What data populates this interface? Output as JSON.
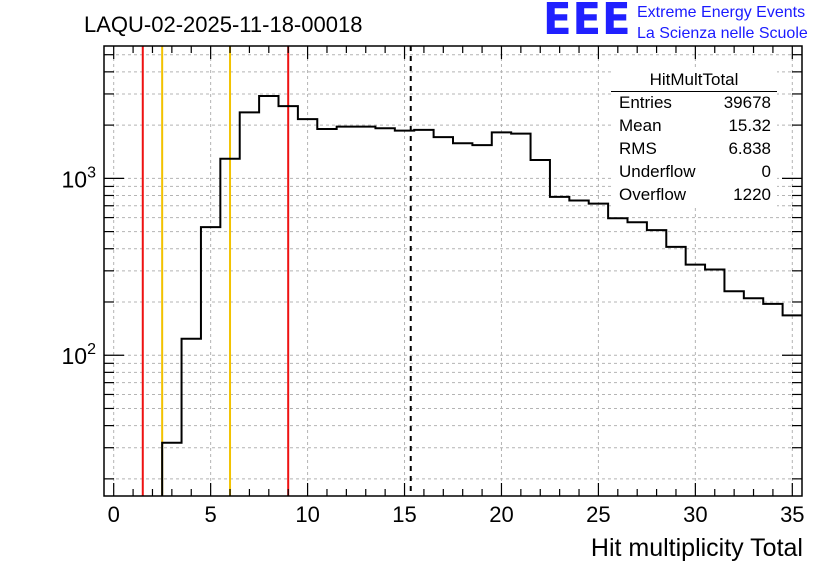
{
  "run_title": "LAQU-02-2025-11-18-00018",
  "logo": {
    "mark": "EEE",
    "line1": "Extreme Energy Events",
    "line2": "La Scienza nelle Scuole"
  },
  "stats_box": {
    "title": "HitMultTotal",
    "rows": [
      {
        "label": "Entries",
        "value": "39678"
      },
      {
        "label": "Mean",
        "value": "15.32"
      },
      {
        "label": "RMS",
        "value": "6.838"
      },
      {
        "label": "Underflow",
        "value": "0"
      },
      {
        "label": "Overflow",
        "value": "1220"
      }
    ]
  },
  "chart_data": {
    "type": "histogram",
    "title": "LAQU-02-2025-11-18-00018",
    "xlabel": "Hit multiplicity Total",
    "ylabel": "",
    "yscale": "log",
    "xlim": [
      -0.5,
      35.5
    ],
    "ylim": [
      16,
      5600
    ],
    "bin_width": 1,
    "bin_lows": [
      2.5,
      3.5,
      4.5,
      5.5,
      6.5,
      7.5,
      8.5,
      9.5,
      10.5,
      11.5,
      12.5,
      13.5,
      14.5,
      15.5,
      16.5,
      17.5,
      18.5,
      19.5,
      20.5,
      21.5,
      22.5,
      23.5,
      24.5,
      25.5,
      26.5,
      27.5,
      28.5,
      29.5,
      30.5,
      31.5,
      32.5,
      33.5,
      34.5
    ],
    "counts": [
      32,
      124,
      530,
      1290,
      2360,
      2920,
      2560,
      2160,
      1900,
      1960,
      1960,
      1920,
      1860,
      1880,
      1710,
      1580,
      1540,
      1820,
      1790,
      1270,
      785,
      750,
      720,
      595,
      565,
      510,
      410,
      325,
      305,
      230,
      210,
      195,
      168
    ],
    "x_ticks": [
      0,
      5,
      10,
      15,
      20,
      25,
      30,
      35
    ],
    "y_ticks": [
      {
        "value": 100,
        "base": "10",
        "exp": "2"
      },
      {
        "value": 1000,
        "base": "10",
        "exp": "3"
      }
    ],
    "vertical_lines": [
      {
        "x": 1.5,
        "color": "#ee1111",
        "style": "solid"
      },
      {
        "x": 2.5,
        "color": "#f2c200",
        "style": "solid"
      },
      {
        "x": 6.0,
        "color": "#f2c200",
        "style": "solid"
      },
      {
        "x": 9.0,
        "color": "#ee1111",
        "style": "solid"
      },
      {
        "x": 15.32,
        "color": "#000000",
        "style": "dashed"
      }
    ],
    "grid": true,
    "colors": {
      "line": "#000000",
      "grid": "#b4b4b4"
    }
  }
}
